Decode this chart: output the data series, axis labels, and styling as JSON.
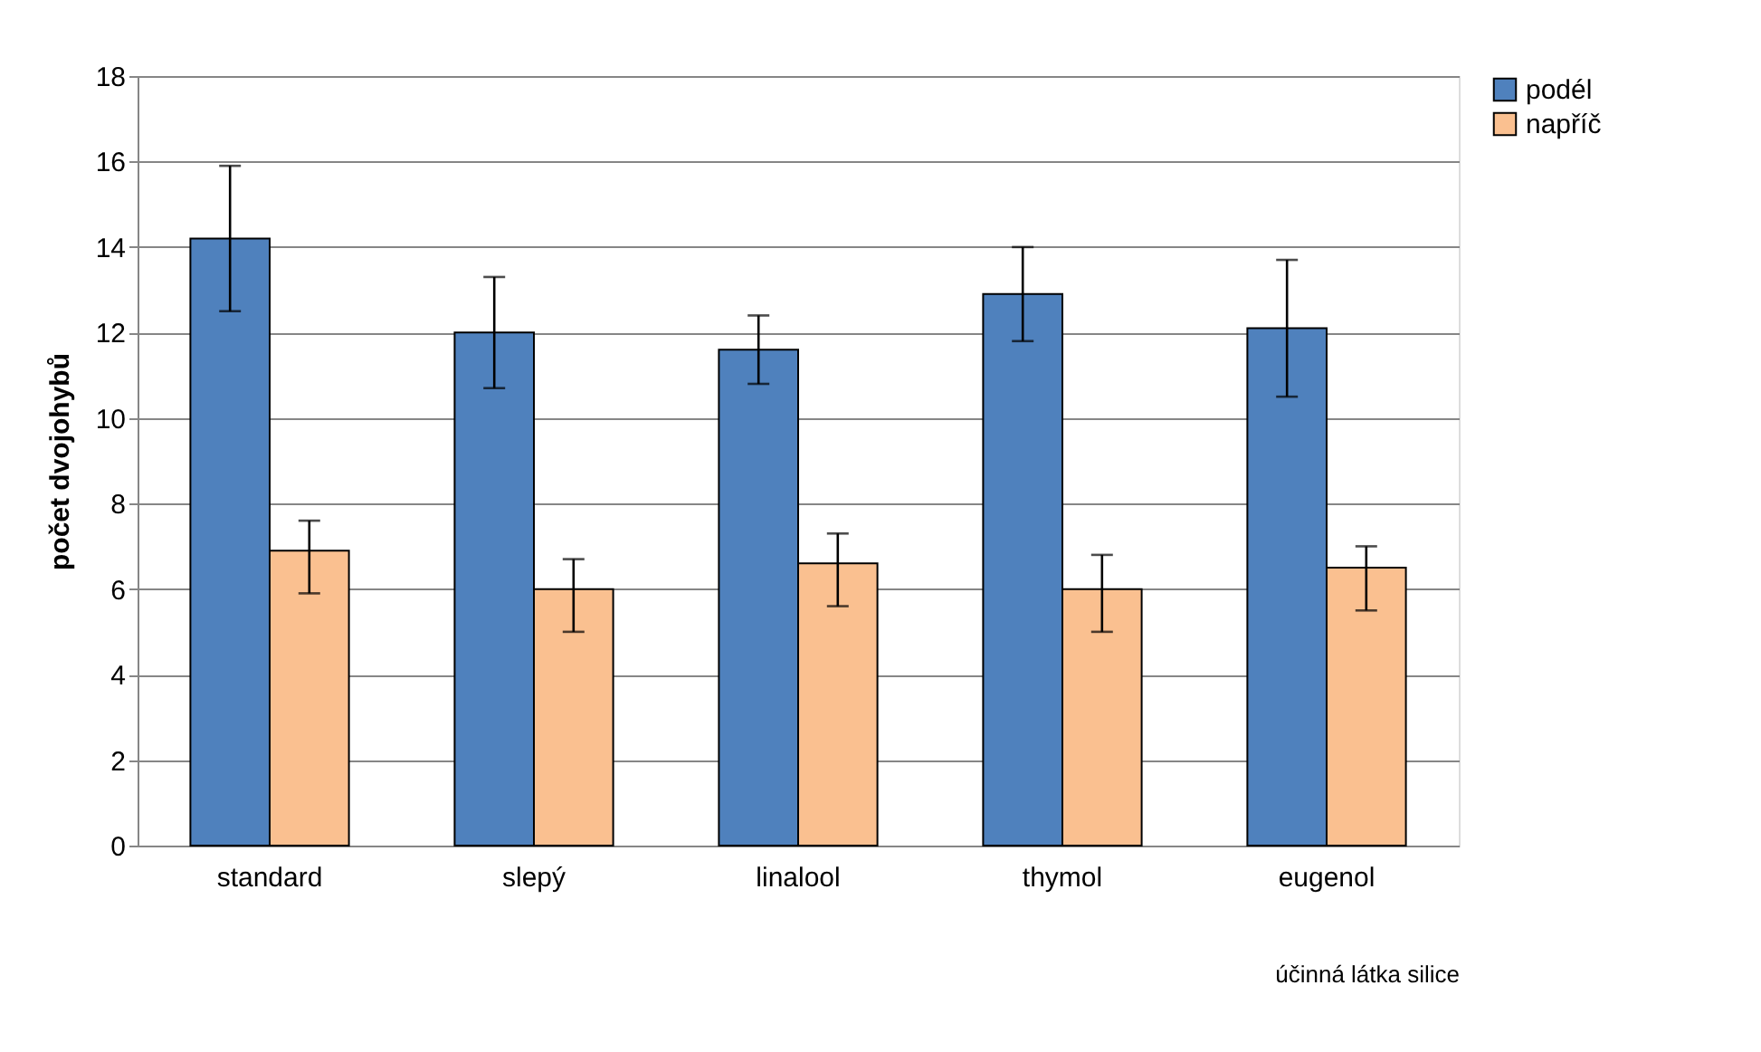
{
  "chart_data": {
    "type": "bar",
    "xlabel": "účinná látka silice",
    "ylabel": "počet dvojohybů",
    "categories": [
      "standard",
      "slepý",
      "linalool",
      "thymol",
      "eugenol"
    ],
    "series": [
      {
        "name": "podél",
        "color": "#4f81bd",
        "values": [
          14.2,
          12.0,
          11.6,
          12.9,
          12.1
        ],
        "errors": [
          [
            12.5,
            15.9
          ],
          [
            10.7,
            13.3
          ],
          [
            10.8,
            12.4
          ],
          [
            11.8,
            14.0
          ],
          [
            10.5,
            13.7
          ]
        ]
      },
      {
        "name": "napříč",
        "color": "#fac090",
        "values": [
          6.9,
          6.0,
          6.6,
          6.0,
          6.5
        ],
        "errors": [
          [
            5.9,
            7.6
          ],
          [
            5.0,
            6.7
          ],
          [
            5.6,
            7.3
          ],
          [
            5.0,
            6.8
          ],
          [
            5.5,
            7.0
          ]
        ]
      }
    ],
    "ylim": [
      0,
      18
    ],
    "yticks": [
      0,
      2,
      4,
      6,
      8,
      10,
      12,
      14,
      16,
      18
    ],
    "grid": "y",
    "legend": "right"
  }
}
